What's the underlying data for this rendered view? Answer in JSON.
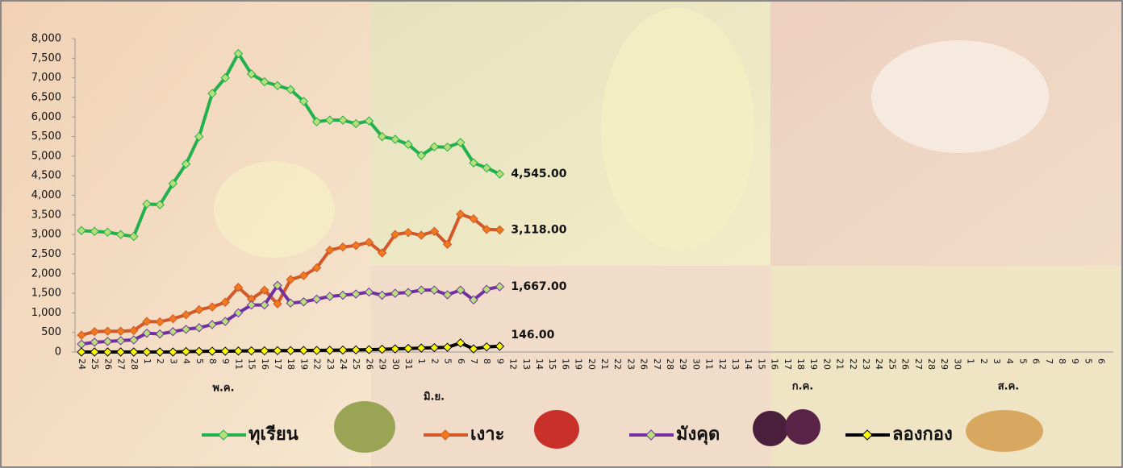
{
  "chart_data": {
    "type": "line",
    "categories": [
      "24",
      "25",
      "26",
      "27",
      "28",
      "1",
      "2",
      "3",
      "4",
      "5",
      "8",
      "9",
      "11",
      "15",
      "16",
      "17",
      "18",
      "19",
      "22",
      "23",
      "24",
      "25",
      "26",
      "29",
      "30",
      "31",
      "1",
      "2",
      "5",
      "6",
      "7",
      "8",
      "9",
      "12",
      "13",
      "14",
      "15",
      "16",
      "19",
      "20",
      "21",
      "22",
      "23",
      "26",
      "27",
      "28",
      "29",
      "30",
      "11",
      "12",
      "13",
      "14",
      "15",
      "16",
      "17",
      "18",
      "19",
      "20",
      "21",
      "22",
      "23",
      "24",
      "25",
      "26",
      "27",
      "28",
      "29",
      "30",
      "1",
      "2",
      "3",
      "4",
      "5",
      "6",
      "7",
      "8",
      "9",
      "5",
      "6"
    ],
    "month_labels": [
      "พ.ค.",
      "มิ.ย.",
      "ก.ค.",
      "ส.ค."
    ],
    "ylim": [
      0,
      8000
    ],
    "yticks": [
      0,
      500,
      {
        "value": 1000,
        "label": "1,000"
      },
      {
        "value": 1500,
        "label": "1,500"
      },
      {
        "value": 2000,
        "label": "2,000"
      },
      {
        "value": 2500,
        "label": "2,500"
      },
      {
        "value": 3000,
        "label": "3,000"
      },
      {
        "value": 3500,
        "label": "3,500"
      },
      {
        "value": 4000,
        "label": "4,000"
      },
      {
        "value": 4500,
        "label": "4,500"
      },
      {
        "value": 5000,
        "label": "5,000"
      },
      {
        "value": 5500,
        "label": "5,500"
      },
      {
        "value": 6000,
        "label": "6,000"
      },
      {
        "value": 6500,
        "label": "6,500"
      },
      {
        "value": 7000,
        "label": "7,000"
      },
      {
        "value": 7500,
        "label": "7,500"
      },
      {
        "value": 8000,
        "label": "8,000"
      }
    ],
    "grid": false,
    "legend": "bottom",
    "series": [
      {
        "name": "ทุเรียน",
        "color": "#22b14c",
        "marker_color": "#b8e07a",
        "values": [
          3100,
          3080,
          3060,
          3000,
          2950,
          3780,
          3760,
          4300,
          4800,
          5500,
          6600,
          7000,
          7620,
          7100,
          6900,
          6800,
          6700,
          6400,
          5880,
          5920,
          5920,
          5830,
          5900,
          5500,
          5430,
          5300,
          5020,
          5240,
          5230,
          5350,
          4830,
          4700,
          4545,
          null,
          null,
          null,
          null,
          null,
          null,
          null,
          null,
          null,
          null,
          null,
          null,
          null,
          null,
          null,
          null,
          null,
          null,
          null,
          null,
          null,
          null,
          null,
          null,
          null,
          null,
          null,
          null,
          null,
          null,
          null,
          null,
          null,
          null,
          null,
          null,
          null,
          null,
          null,
          null,
          null,
          null,
          null,
          null,
          null,
          null
        ],
        "value_labels": [
          null,
          null,
          null,
          null,
          null,
          null,
          null,
          null,
          null,
          null,
          null,
          null,
          null,
          null,
          null,
          null,
          null,
          null,
          null,
          null,
          null,
          null,
          null,
          null,
          null,
          null,
          null,
          null,
          null,
          null,
          null,
          null,
          "4,545.00",
          null,
          null,
          null,
          null,
          null,
          null,
          null,
          null,
          null,
          null,
          null,
          null,
          null,
          null,
          null,
          null,
          null,
          null,
          null,
          null,
          null,
          null,
          null,
          null,
          null,
          null,
          null,
          null,
          null,
          null,
          null,
          null,
          null,
          null,
          null,
          null,
          null,
          null,
          null,
          null,
          null,
          null,
          null,
          null,
          null,
          null
        ]
      },
      {
        "name": "เงาะ",
        "color": "#d2582a",
        "marker_color": "#f07a1c",
        "values": [
          430,
          520,
          530,
          530,
          550,
          780,
          770,
          850,
          950,
          1080,
          1150,
          1270,
          1650,
          1350,
          1580,
          1230,
          1850,
          1950,
          2150,
          2600,
          2680,
          2720,
          2800,
          2530,
          3000,
          3050,
          2980,
          3080,
          2750,
          3520,
          3400,
          3130,
          3118,
          null,
          null,
          null,
          null,
          null,
          null,
          null,
          null,
          null,
          null,
          null,
          null,
          null,
          null,
          null,
          null,
          null,
          null,
          null,
          null,
          null,
          null,
          null,
          null,
          null,
          null,
          null,
          null,
          null,
          null,
          null,
          null,
          null,
          null,
          null,
          null,
          null,
          null,
          null,
          null,
          null,
          null,
          null,
          null,
          null,
          null
        ],
        "value_labels": [
          null,
          null,
          null,
          null,
          null,
          null,
          null,
          null,
          null,
          null,
          null,
          null,
          null,
          null,
          null,
          null,
          null,
          null,
          null,
          null,
          null,
          null,
          null,
          null,
          null,
          null,
          null,
          null,
          null,
          null,
          null,
          null,
          "3,118.00",
          null,
          null,
          null,
          null,
          null,
          null,
          null,
          null,
          null,
          null,
          null,
          null,
          null,
          null,
          null,
          null,
          null,
          null,
          null,
          null,
          null,
          null,
          null,
          null,
          null,
          null,
          null,
          null,
          null,
          null,
          null,
          null,
          null,
          null,
          null,
          null,
          null,
          null,
          null,
          null,
          null,
          null,
          null,
          null,
          null,
          null
        ]
      },
      {
        "name": "มังคุด",
        "color": "#7030a0",
        "marker_color": "#b8e07a",
        "values": [
          200,
          250,
          270,
          290,
          310,
          480,
          460,
          520,
          580,
          620,
          700,
          780,
          1000,
          1200,
          1200,
          1700,
          1250,
          1280,
          1350,
          1420,
          1450,
          1480,
          1530,
          1450,
          1500,
          1520,
          1580,
          1580,
          1460,
          1580,
          1330,
          1600,
          1667,
          null,
          null,
          null,
          null,
          null,
          null,
          null,
          null,
          null,
          null,
          null,
          null,
          null,
          null,
          null,
          null,
          null,
          null,
          null,
          null,
          null,
          null,
          null,
          null,
          null,
          null,
          null,
          null,
          null,
          null,
          null,
          null,
          null,
          null,
          null,
          null,
          null,
          null,
          null,
          null,
          null,
          null,
          null,
          null,
          null,
          null
        ],
        "value_labels": [
          null,
          null,
          null,
          null,
          null,
          null,
          null,
          null,
          null,
          null,
          null,
          null,
          null,
          null,
          null,
          null,
          null,
          null,
          null,
          null,
          null,
          null,
          null,
          null,
          null,
          null,
          null,
          null,
          null,
          null,
          null,
          null,
          "1,667.00",
          null,
          null,
          null,
          null,
          null,
          null,
          null,
          null,
          null,
          null,
          null,
          null,
          null,
          null,
          null,
          null,
          null,
          null,
          null,
          null,
          null,
          null,
          null,
          null,
          null,
          null,
          null,
          null,
          null,
          null,
          null,
          null,
          null,
          null,
          null,
          null,
          null,
          null,
          null,
          null,
          null,
          null,
          null,
          null,
          null,
          null
        ]
      },
      {
        "name": "ลองกอง",
        "color": "#000000",
        "marker_color": "#ffff00",
        "values": [
          0,
          0,
          0,
          0,
          0,
          0,
          0,
          0,
          10,
          15,
          20,
          20,
          25,
          30,
          30,
          35,
          35,
          40,
          40,
          45,
          50,
          55,
          60,
          70,
          80,
          90,
          100,
          110,
          120,
          230,
          80,
          130,
          146,
          null,
          null,
          null,
          null,
          null,
          null,
          null,
          null,
          null,
          null,
          null,
          null,
          null,
          null,
          null,
          null,
          null,
          null,
          null,
          null,
          null,
          null,
          null,
          null,
          null,
          null,
          null,
          null,
          null,
          null,
          null,
          null,
          null,
          null,
          null,
          null,
          null,
          null,
          null,
          null,
          null,
          null,
          null,
          null,
          null,
          null
        ],
        "value_labels": [
          null,
          null,
          null,
          null,
          null,
          null,
          null,
          null,
          null,
          null,
          null,
          null,
          null,
          null,
          null,
          null,
          null,
          null,
          null,
          null,
          null,
          null,
          null,
          null,
          null,
          null,
          null,
          null,
          null,
          null,
          null,
          null,
          "146.00",
          null,
          null,
          null,
          null,
          null,
          null,
          null,
          null,
          null,
          null,
          null,
          null,
          null,
          null,
          null,
          null,
          null,
          null,
          null,
          null,
          null,
          null,
          null,
          null,
          null,
          null,
          null,
          null,
          null,
          null,
          null,
          null,
          null,
          null,
          null,
          null,
          null,
          null,
          null,
          null,
          null,
          null,
          null,
          null,
          null,
          null
        ]
      }
    ]
  }
}
